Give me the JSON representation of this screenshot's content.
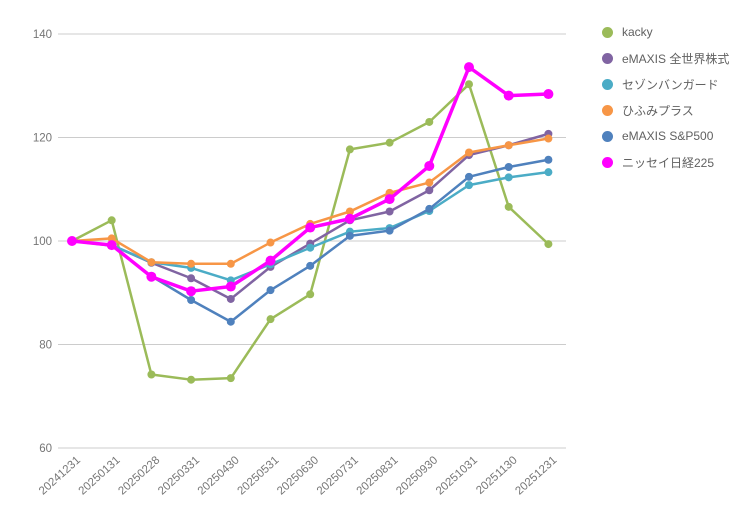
{
  "chart_data": {
    "type": "line",
    "title": "",
    "xlabel": "",
    "ylabel": "",
    "grid": true,
    "legend_position": "right",
    "ylim": [
      60,
      140
    ],
    "yticks": [
      60,
      80,
      100,
      120,
      140
    ],
    "x": [
      "20241231",
      "20250131",
      "20250228",
      "20250331",
      "20250430",
      "20250531",
      "20250630",
      "20250731",
      "20250831",
      "20250930",
      "20251031",
      "20251130",
      "20251231"
    ],
    "series": [
      {
        "name": "kacky",
        "color": "#9BBB59",
        "values": [
          100,
          104.0,
          74.2,
          73.2,
          73.5,
          84.9,
          89.7,
          117.7,
          119.0,
          123.0,
          130.3,
          106.6,
          99.4
        ]
      },
      {
        "name": "eMAXIS 全世界株式",
        "color": "#8064A2",
        "values": [
          100,
          99.2,
          95.8,
          92.8,
          88.8,
          95.0,
          99.5,
          104.0,
          105.7,
          109.8,
          116.6,
          118.5,
          120.7
        ]
      },
      {
        "name": "セゾンバンガード",
        "color": "#4BACC6",
        "values": [
          100,
          99.2,
          95.9,
          94.8,
          92.4,
          95.5,
          98.7,
          101.8,
          102.5,
          105.8,
          110.8,
          112.3,
          113.3
        ]
      },
      {
        "name": "ひふみプラス",
        "color": "#F79646",
        "values": [
          100,
          100.5,
          95.9,
          95.6,
          95.6,
          99.7,
          103.3,
          105.7,
          109.3,
          111.3,
          117.1,
          118.5,
          119.8
        ]
      },
      {
        "name": "eMAXIS S&P500",
        "color": "#4F81BD",
        "values": [
          100,
          99.1,
          93.2,
          88.6,
          84.4,
          90.5,
          95.2,
          101.0,
          102.0,
          106.2,
          112.4,
          114.3,
          115.7
        ]
      },
      {
        "name": "ニッセイ日経225",
        "color": "#FF00FF",
        "values": [
          100,
          99.2,
          93.1,
          90.3,
          91.2,
          96.2,
          102.6,
          104.3,
          108.1,
          114.5,
          133.6,
          128.1,
          128.4
        ]
      }
    ]
  },
  "style": {
    "background": "#ffffff",
    "grid_color": "#cccccc",
    "tick_label_color": "#757575",
    "legend_text_color": "#616161"
  }
}
